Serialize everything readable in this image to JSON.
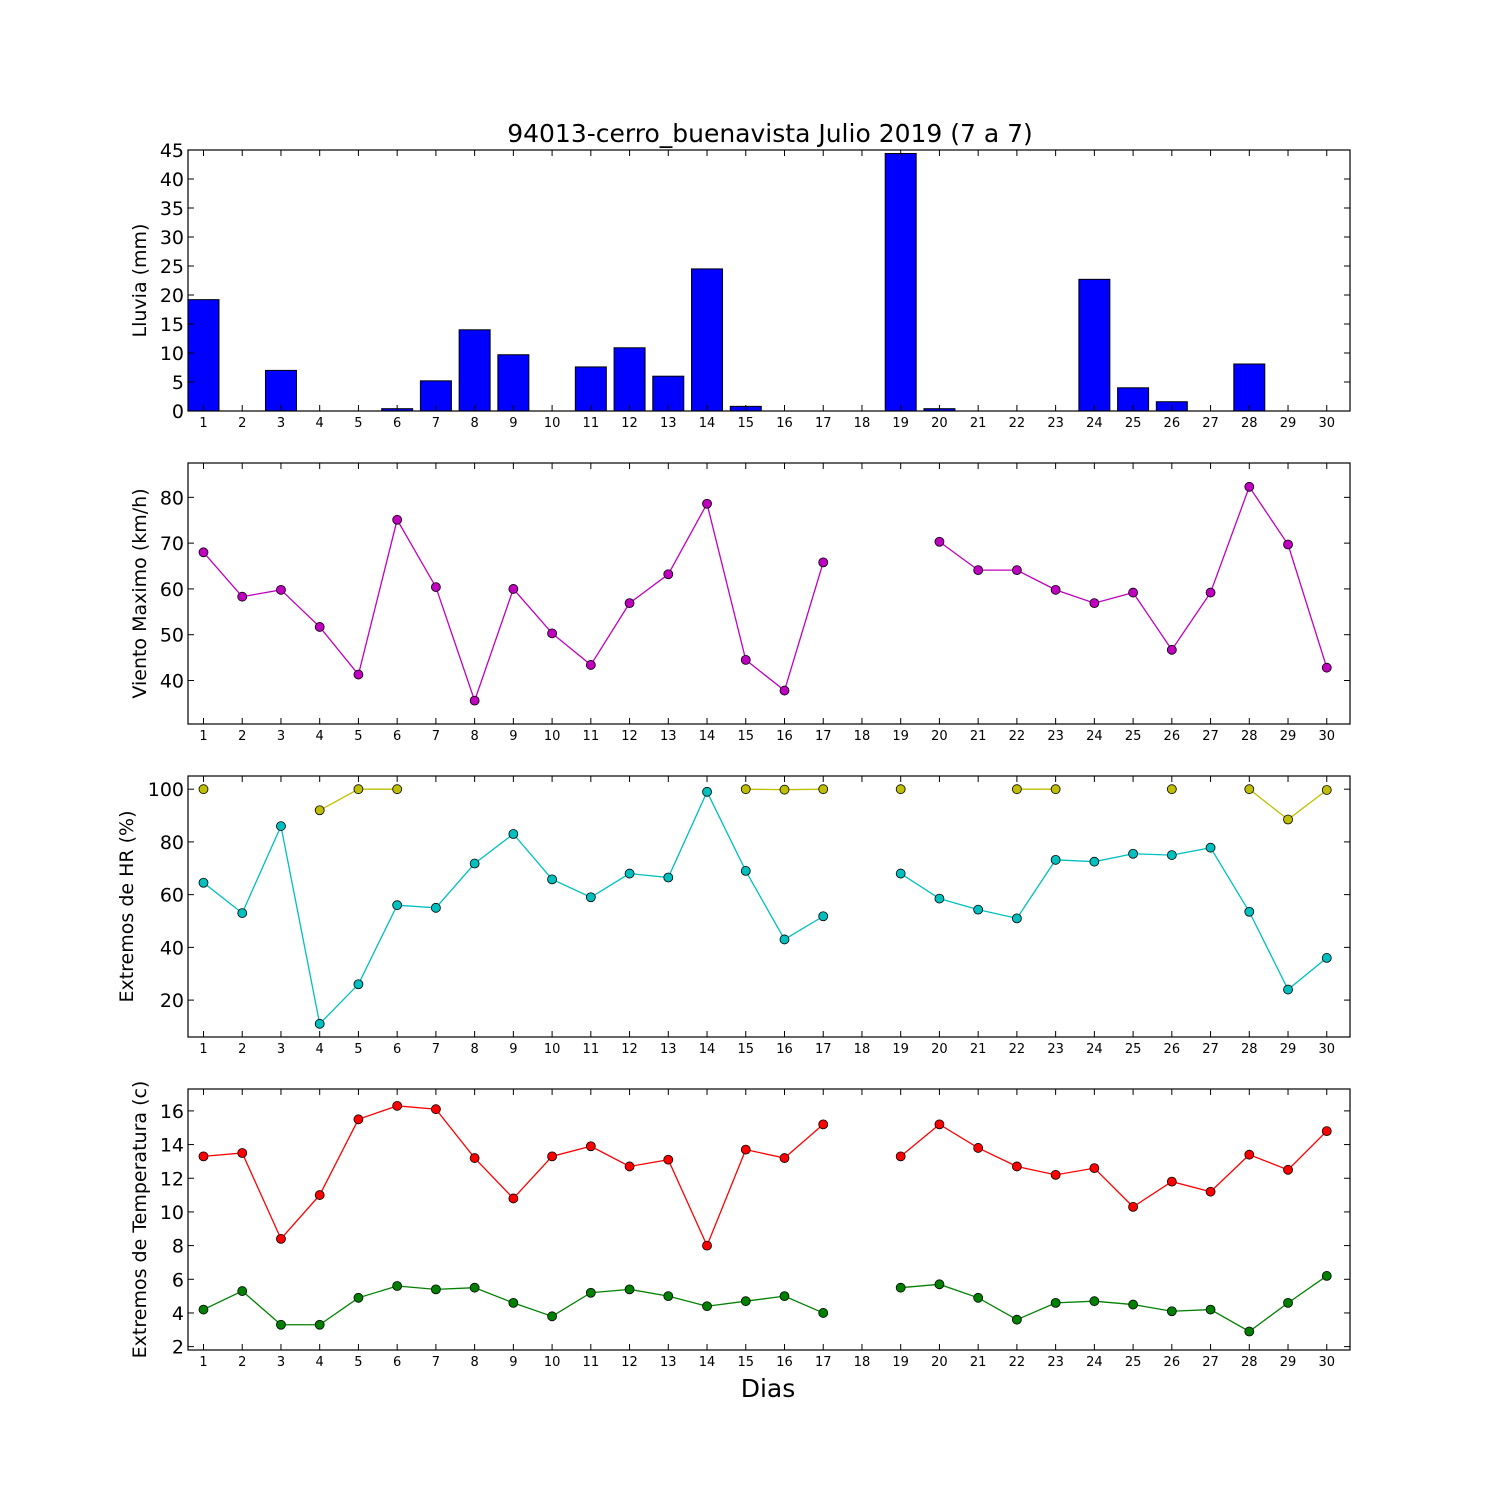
{
  "title": "94013-cerro_buenavista Julio 2019  (7 a 7)",
  "xlabel": "Dias",
  "chart_data": [
    {
      "type": "bar",
      "ylabel": "Lluvia (mm)",
      "ylim": [
        0,
        45
      ],
      "yticks": [
        0,
        5,
        10,
        15,
        20,
        25,
        30,
        35,
        40,
        45
      ],
      "xlim": [
        0.6,
        30.6
      ],
      "x": [
        1,
        2,
        3,
        4,
        5,
        6,
        7,
        8,
        9,
        10,
        11,
        12,
        13,
        14,
        15,
        16,
        17,
        18,
        19,
        20,
        21,
        22,
        23,
        24,
        25,
        26,
        27,
        28,
        29,
        30
      ],
      "series": [
        {
          "color": "#0000ff",
          "values": [
            19.2,
            0,
            7.0,
            0,
            0,
            0.4,
            5.2,
            14.0,
            9.7,
            0,
            7.6,
            10.9,
            6.0,
            24.5,
            0.8,
            0,
            0,
            0,
            44.4,
            0.4,
            0,
            0,
            0,
            22.7,
            4.0,
            1.6,
            0,
            8.1,
            0,
            0
          ]
        }
      ]
    },
    {
      "type": "line",
      "ylabel": "Viento Maximo (km/h)",
      "ylim": [
        30.5,
        87.5
      ],
      "yticks": [
        40,
        50,
        60,
        70,
        80
      ],
      "xlim": [
        0.6,
        30.6
      ],
      "x": [
        1,
        2,
        3,
        4,
        5,
        6,
        7,
        8,
        9,
        10,
        11,
        12,
        13,
        14,
        15,
        16,
        17,
        18,
        19,
        20,
        21,
        22,
        23,
        24,
        25,
        26,
        27,
        28,
        29,
        30
      ],
      "series": [
        {
          "color": "#bf00bf",
          "values": [
            68.0,
            58.3,
            59.8,
            51.7,
            41.3,
            75.1,
            60.4,
            35.6,
            60.0,
            50.3,
            43.4,
            56.9,
            63.2,
            78.6,
            44.5,
            37.8,
            65.8,
            null,
            null,
            70.3,
            64.1,
            64.1,
            59.8,
            56.9,
            59.2,
            46.7,
            59.2,
            82.3,
            69.7,
            42.8
          ]
        }
      ]
    },
    {
      "type": "line",
      "ylabel": "Extremos de HR (%)",
      "ylim": [
        6,
        105
      ],
      "yticks": [
        20,
        40,
        60,
        80,
        100
      ],
      "xlim": [
        0.6,
        30.6
      ],
      "x": [
        1,
        2,
        3,
        4,
        5,
        6,
        7,
        8,
        9,
        10,
        11,
        12,
        13,
        14,
        15,
        16,
        17,
        18,
        19,
        20,
        21,
        22,
        23,
        24,
        25,
        26,
        27,
        28,
        29,
        30
      ],
      "series": [
        {
          "color": "#bfbf00",
          "values": [
            100,
            null,
            null,
            92,
            100,
            100,
            null,
            null,
            null,
            null,
            null,
            null,
            null,
            null,
            100,
            99.8,
            100,
            null,
            100,
            null,
            null,
            100,
            100,
            null,
            null,
            100,
            null,
            100,
            88.5,
            99.7
          ]
        },
        {
          "color": "#00bfbf",
          "values": [
            64.5,
            53.0,
            86.0,
            11.0,
            26.0,
            56.0,
            55.0,
            71.8,
            83.0,
            65.8,
            59.0,
            68.0,
            66.5,
            99.0,
            69.0,
            43.0,
            51.8,
            null,
            68.0,
            58.5,
            54.3,
            51.0,
            73.2,
            72.5,
            75.5,
            75.0,
            77.8,
            53.5,
            24.0,
            36.0
          ]
        }
      ]
    },
    {
      "type": "line",
      "ylabel": "Extremos de Temperatura (c)",
      "ylim": [
        1.8,
        17.3
      ],
      "yticks": [
        2,
        4,
        6,
        8,
        10,
        12,
        14,
        16
      ],
      "xlim": [
        0.6,
        30.6
      ],
      "x": [
        1,
        2,
        3,
        4,
        5,
        6,
        7,
        8,
        9,
        10,
        11,
        12,
        13,
        14,
        15,
        16,
        17,
        18,
        19,
        20,
        21,
        22,
        23,
        24,
        25,
        26,
        27,
        28,
        29,
        30
      ],
      "series": [
        {
          "color": "#ff0000",
          "values": [
            13.3,
            13.5,
            8.4,
            11.0,
            15.5,
            16.3,
            16.1,
            13.2,
            10.8,
            13.3,
            13.9,
            12.7,
            13.1,
            8.0,
            13.7,
            13.2,
            15.2,
            null,
            13.3,
            15.2,
            13.8,
            12.7,
            12.2,
            12.6,
            10.3,
            11.8,
            11.2,
            13.4,
            12.5,
            14.8
          ]
        },
        {
          "color": "#008000",
          "values": [
            4.2,
            5.3,
            3.3,
            3.3,
            4.9,
            5.6,
            5.4,
            5.5,
            4.6,
            3.8,
            5.2,
            5.4,
            5.0,
            4.4,
            4.7,
            5.0,
            4.0,
            null,
            5.5,
            5.7,
            4.9,
            3.6,
            4.6,
            4.7,
            4.5,
            4.1,
            4.2,
            2.9,
            4.6,
            6.2
          ]
        }
      ]
    }
  ]
}
